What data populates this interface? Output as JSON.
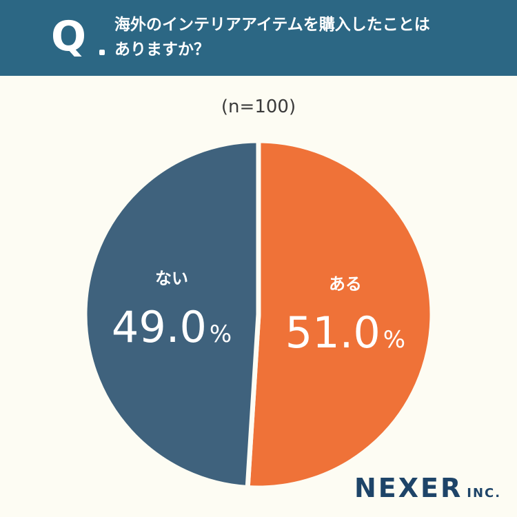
{
  "header": {
    "q_label": "Q",
    "question_line1": "海外のインテリアアイテムを購入したことは",
    "question_line2": "ありますか？"
  },
  "sample_label": "(n=100)",
  "colors": {
    "header_bg": "#2c6784",
    "yes": "#ef7238",
    "no": "#3f627d",
    "background": "#fdfcf3"
  },
  "chart_data": {
    "type": "pie",
    "slices": [
      {
        "label": "ある",
        "value": 51.0,
        "display": "51.0",
        "color": "#ef7238"
      },
      {
        "label": "ない",
        "value": 49.0,
        "display": "49.0",
        "color": "#3f627d"
      }
    ],
    "unit": "%"
  },
  "logo": {
    "main": "NEXER",
    "sub": "INC."
  }
}
